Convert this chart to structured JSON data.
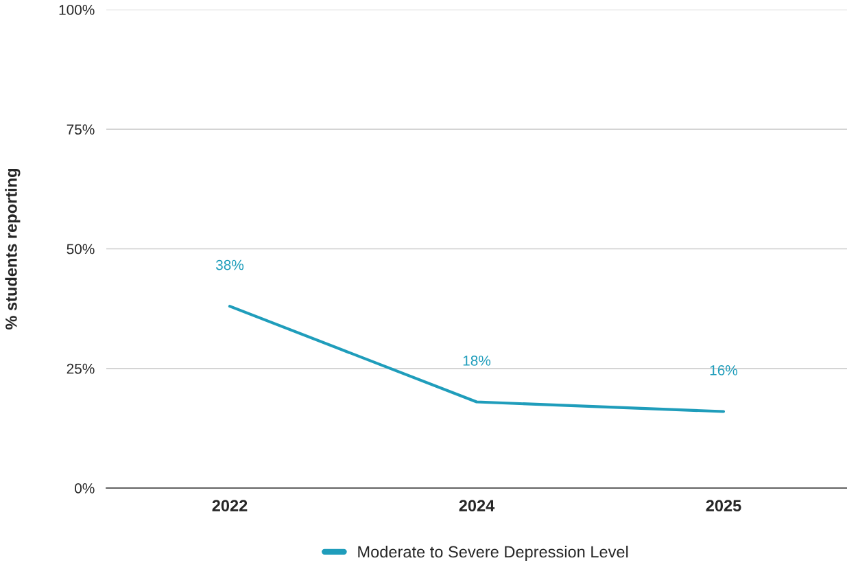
{
  "chart_data": {
    "type": "line",
    "ylabel": "% students reporting",
    "categories": [
      "2022",
      "2024",
      "2025"
    ],
    "series": [
      {
        "name": "Moderate to Severe Depression Level",
        "color": "#1f9dbb",
        "values": [
          38,
          18,
          16
        ],
        "value_labels": [
          "38%",
          "18%",
          "16%"
        ]
      }
    ],
    "ylim": [
      0,
      100
    ],
    "yticks": [
      {
        "value": 0,
        "label": "0%"
      },
      {
        "value": 25,
        "label": "25%"
      },
      {
        "value": 50,
        "label": "50%"
      },
      {
        "value": 75,
        "label": "75%"
      },
      {
        "value": 100,
        "label": "100%"
      }
    ],
    "grid": "y",
    "legend": "bottom",
    "marker": "none",
    "line_style": "solid"
  }
}
